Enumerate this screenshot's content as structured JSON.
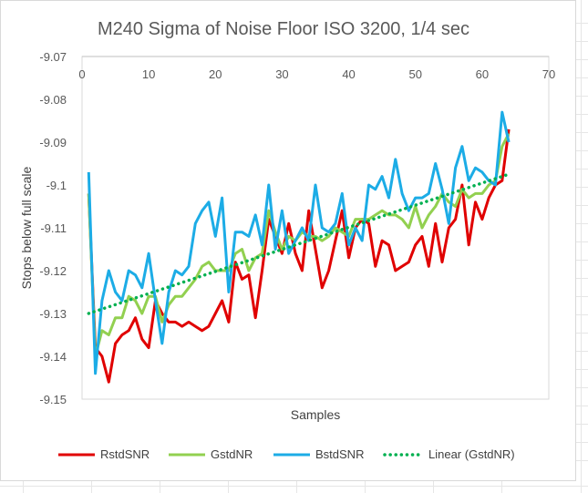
{
  "chart_data": {
    "type": "line",
    "title": "M240 Sigma of Noise Floor ISO 3200, 1/4 sec",
    "xlabel": "Samples",
    "ylabel": "Stops below full scale",
    "xlim": [
      0,
      70
    ],
    "ylim": [
      -9.15,
      -9.07
    ],
    "x_ticks": [
      "0",
      "10",
      "20",
      "30",
      "40",
      "50",
      "60",
      "70"
    ],
    "y_ticks": [
      "-9.07",
      "-9.08",
      "-9.09",
      "-9.1",
      "-9.11",
      "-9.12",
      "-9.13",
      "-9.14",
      "-9.15"
    ],
    "x_axis_position": "top",
    "grid": false,
    "legend_position": "bottom",
    "series": [
      {
        "name": "RstdSNR",
        "color": "#e00000",
        "x": [
          1,
          2,
          3,
          4,
          5,
          6,
          7,
          8,
          9,
          10,
          11,
          12,
          13,
          14,
          15,
          16,
          17,
          18,
          19,
          20,
          21,
          22,
          23,
          24,
          25,
          26,
          27,
          28,
          29,
          30,
          31,
          32,
          33,
          34,
          35,
          36,
          37,
          38,
          39,
          40,
          41,
          42,
          43,
          44,
          45,
          46,
          47,
          48,
          49,
          50,
          51,
          52,
          53,
          54,
          55,
          56,
          57,
          58,
          59,
          60,
          61,
          62,
          63,
          64
        ],
        "values": [
          -9.102,
          -9.138,
          -9.14,
          -9.146,
          -9.137,
          -9.135,
          -9.134,
          -9.131,
          -9.136,
          -9.138,
          -9.127,
          -9.13,
          -9.132,
          -9.132,
          -9.133,
          -9.132,
          -9.133,
          -9.134,
          -9.133,
          -9.13,
          -9.127,
          -9.132,
          -9.118,
          -9.122,
          -9.121,
          -9.131,
          -9.12,
          -9.108,
          -9.112,
          -9.116,
          -9.109,
          -9.116,
          -9.12,
          -9.106,
          -9.115,
          -9.124,
          -9.12,
          -9.113,
          -9.106,
          -9.117,
          -9.11,
          -9.108,
          -9.109,
          -9.119,
          -9.113,
          -9.114,
          -9.12,
          -9.119,
          -9.118,
          -9.114,
          -9.112,
          -9.119,
          -9.109,
          -9.118,
          -9.11,
          -9.108,
          -9.1,
          -9.114,
          -9.104,
          -9.108,
          -9.103,
          -9.1,
          -9.099,
          -9.087
        ]
      },
      {
        "name": "GstdNR",
        "color": "#92d050",
        "x": [
          1,
          2,
          3,
          4,
          5,
          6,
          7,
          8,
          9,
          10,
          11,
          12,
          13,
          14,
          15,
          16,
          17,
          18,
          19,
          20,
          21,
          22,
          23,
          24,
          25,
          26,
          27,
          28,
          29,
          30,
          31,
          32,
          33,
          34,
          35,
          36,
          37,
          38,
          39,
          40,
          41,
          42,
          43,
          44,
          45,
          46,
          47,
          48,
          49,
          50,
          51,
          52,
          53,
          54,
          55,
          56,
          57,
          58,
          59,
          60,
          61,
          62,
          63,
          64
        ],
        "values": [
          -9.102,
          -9.14,
          -9.134,
          -9.135,
          -9.131,
          -9.131,
          -9.126,
          -9.127,
          -9.13,
          -9.126,
          -9.126,
          -9.132,
          -9.128,
          -9.126,
          -9.126,
          -9.124,
          -9.122,
          -9.119,
          -9.118,
          -9.12,
          -9.12,
          -9.12,
          -9.116,
          -9.115,
          -9.12,
          -9.117,
          -9.116,
          -9.106,
          -9.111,
          -9.115,
          -9.112,
          -9.113,
          -9.111,
          -9.112,
          -9.112,
          -9.113,
          -9.112,
          -9.11,
          -9.111,
          -9.112,
          -9.108,
          -9.108,
          -9.108,
          -9.107,
          -9.106,
          -9.107,
          -9.107,
          -9.108,
          -9.11,
          -9.105,
          -9.11,
          -9.107,
          -9.105,
          -9.102,
          -9.104,
          -9.105,
          -9.101,
          -9.103,
          -9.102,
          -9.102,
          -9.1,
          -9.099,
          -9.091,
          -9.088
        ]
      },
      {
        "name": "BstdSNR",
        "color": "#1cace6",
        "x": [
          1,
          2,
          3,
          4,
          5,
          6,
          7,
          8,
          9,
          10,
          11,
          12,
          13,
          14,
          15,
          16,
          17,
          18,
          19,
          20,
          21,
          22,
          23,
          24,
          25,
          26,
          27,
          28,
          29,
          30,
          31,
          32,
          33,
          34,
          35,
          36,
          37,
          38,
          39,
          40,
          41,
          42,
          43,
          44,
          45,
          46,
          47,
          48,
          49,
          50,
          51,
          52,
          53,
          54,
          55,
          56,
          57,
          58,
          59,
          60,
          61,
          62,
          63,
          64
        ],
        "values": [
          -9.097,
          -9.144,
          -9.127,
          -9.12,
          -9.125,
          -9.127,
          -9.12,
          -9.121,
          -9.124,
          -9.116,
          -9.127,
          -9.137,
          -9.125,
          -9.12,
          -9.121,
          -9.119,
          -9.109,
          -9.106,
          -9.104,
          -9.112,
          -9.103,
          -9.125,
          -9.111,
          -9.111,
          -9.112,
          -9.107,
          -9.114,
          -9.1,
          -9.115,
          -9.106,
          -9.116,
          -9.113,
          -9.11,
          -9.113,
          -9.1,
          -9.11,
          -9.111,
          -9.109,
          -9.102,
          -9.114,
          -9.11,
          -9.113,
          -9.1,
          -9.101,
          -9.098,
          -9.103,
          -9.094,
          -9.102,
          -9.106,
          -9.103,
          -9.103,
          -9.102,
          -9.095,
          -9.101,
          -9.109,
          -9.096,
          -9.091,
          -9.099,
          -9.096,
          -9.097,
          -9.099,
          -9.1,
          -9.083,
          -9.09
        ]
      },
      {
        "name": "Linear (GstdNR)",
        "color": "#00b050",
        "dashed": true,
        "x": [
          1,
          64
        ],
        "values": [
          -9.13,
          -9.0975
        ]
      }
    ]
  }
}
